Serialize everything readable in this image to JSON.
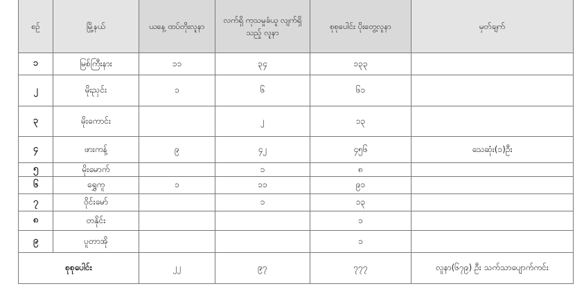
{
  "headers": [
    "စဉ်",
    "မြို့နယ်",
    "ယနေ့ ထပ်တိုးလူနာ",
    "လက်ရှိ ကုသမှုခံယူ လျက်ရှိသည့် လူနာ",
    "စုစုပေါင်း ပိုးတွေ့လူနာ",
    "မှတ်ချက်"
  ],
  "rows": [
    {
      "no": "၁",
      "township": "မြစ်ကြီးနား",
      "new": "၁၁",
      "current": "၃၄",
      "total": "၁၃၃",
      "remark": ""
    },
    {
      "no": "၂",
      "township": "မိုးညှင်း",
      "new": "၁",
      "current": "၆",
      "total": "၆၁",
      "remark": ""
    },
    {
      "no": "၃",
      "township": "မိုးကောင်း",
      "new": "",
      "current": "၂",
      "total": "၁၃",
      "remark": ""
    },
    {
      "no": "၄",
      "township": "ဖားကန့်",
      "new": "၉",
      "current": "၄၂",
      "total": "၄၅၆",
      "remark": "သေဆုံး(၁)ဦး"
    },
    {
      "no": "၅",
      "township": "မိုးမောက်",
      "new": "",
      "current": "၁",
      "total": "၈",
      "remark": ""
    },
    {
      "no": "၆",
      "township": "ရွှေကူ",
      "new": "၁",
      "current": "၁၁",
      "total": "၉၁",
      "remark": ""
    },
    {
      "no": "၇",
      "township": "ဝိုင်းမော်",
      "new": "",
      "current": "၁",
      "total": "၁၃",
      "remark": ""
    },
    {
      "no": "၈",
      "township": "တနိုင်း",
      "new": "",
      "current": "",
      "total": "၁",
      "remark": ""
    },
    {
      "no": "၉",
      "township": "ပူတာအို",
      "new": "",
      "current": "",
      "total": "၁",
      "remark": ""
    }
  ],
  "totals": {
    "label": "စုစုပေါင်း",
    "new": "၂၂",
    "current": "၉၇",
    "total": "၇၇၇",
    "remark": "လူနာ(၆၇၉) ဦး သက်သာပျောက်ကင်း"
  }
}
